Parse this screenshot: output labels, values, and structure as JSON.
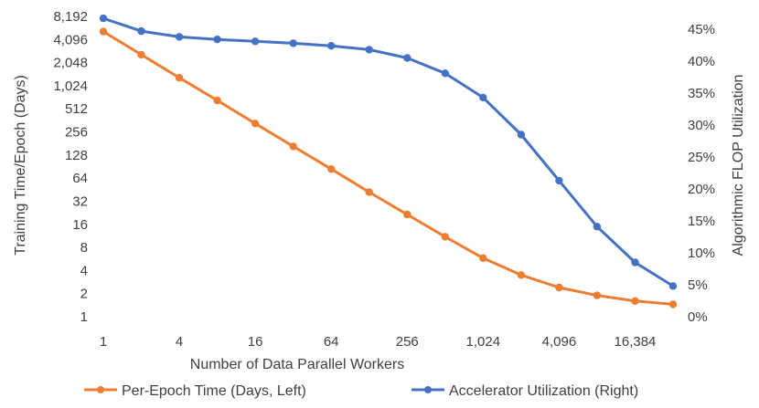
{
  "chart_data": {
    "type": "line",
    "title": "",
    "xlabel": "Number of Data Parallel Workers",
    "ylabel_left": "Training Time/Epoch (Days)",
    "ylabel_right": "Algorithmic FLOP Utilization",
    "x_scale": "log2",
    "x_ticks": [
      1,
      4,
      16,
      64,
      256,
      1024,
      4096,
      16384
    ],
    "x_tick_labels": [
      "1",
      "4",
      "16",
      "64",
      "256",
      "1,024",
      "4,096",
      "16,384"
    ],
    "x": [
      1,
      2,
      4,
      8,
      16,
      32,
      64,
      128,
      256,
      512,
      1024,
      2048,
      4096,
      8192,
      16384,
      32768
    ],
    "y_left_scale": "log2",
    "y_left_ticks": [
      1,
      2,
      4,
      8,
      16,
      32,
      64,
      128,
      256,
      512,
      1024,
      2048,
      4096,
      8192
    ],
    "y_left_tick_labels": [
      "1",
      "2",
      "4",
      "8",
      "16",
      "32",
      "64",
      "128",
      "256",
      "512",
      "1,024",
      "2,048",
      "4,096",
      "8,192"
    ],
    "y_left_range": [
      1,
      8192
    ],
    "y_right_ticks": [
      0,
      5,
      10,
      15,
      20,
      25,
      30,
      35,
      40,
      45
    ],
    "y_right_tick_labels": [
      "0%",
      "5%",
      "10%",
      "15%",
      "20%",
      "25%",
      "30%",
      "35%",
      "40%",
      "45%"
    ],
    "y_right_range": [
      0,
      47
    ],
    "grid": false,
    "legend_position": "bottom",
    "series": [
      {
        "name": "Per-Epoch Time (Days, Left)",
        "axis": "left",
        "color": "#ED7D31",
        "values": [
          5200,
          2600,
          1300,
          660,
          330,
          166,
          84,
          42,
          21.5,
          11,
          5.8,
          3.5,
          2.4,
          1.9,
          1.6,
          1.45
        ]
      },
      {
        "name": "Accelerator Utilization (Right)",
        "axis": "right",
        "color": "#4472C4",
        "values": [
          46.7,
          44.7,
          43.8,
          43.4,
          43.1,
          42.8,
          42.4,
          41.8,
          40.5,
          38.1,
          34.3,
          28.5,
          21.3,
          14.1,
          8.5,
          4.8
        ]
      }
    ]
  }
}
